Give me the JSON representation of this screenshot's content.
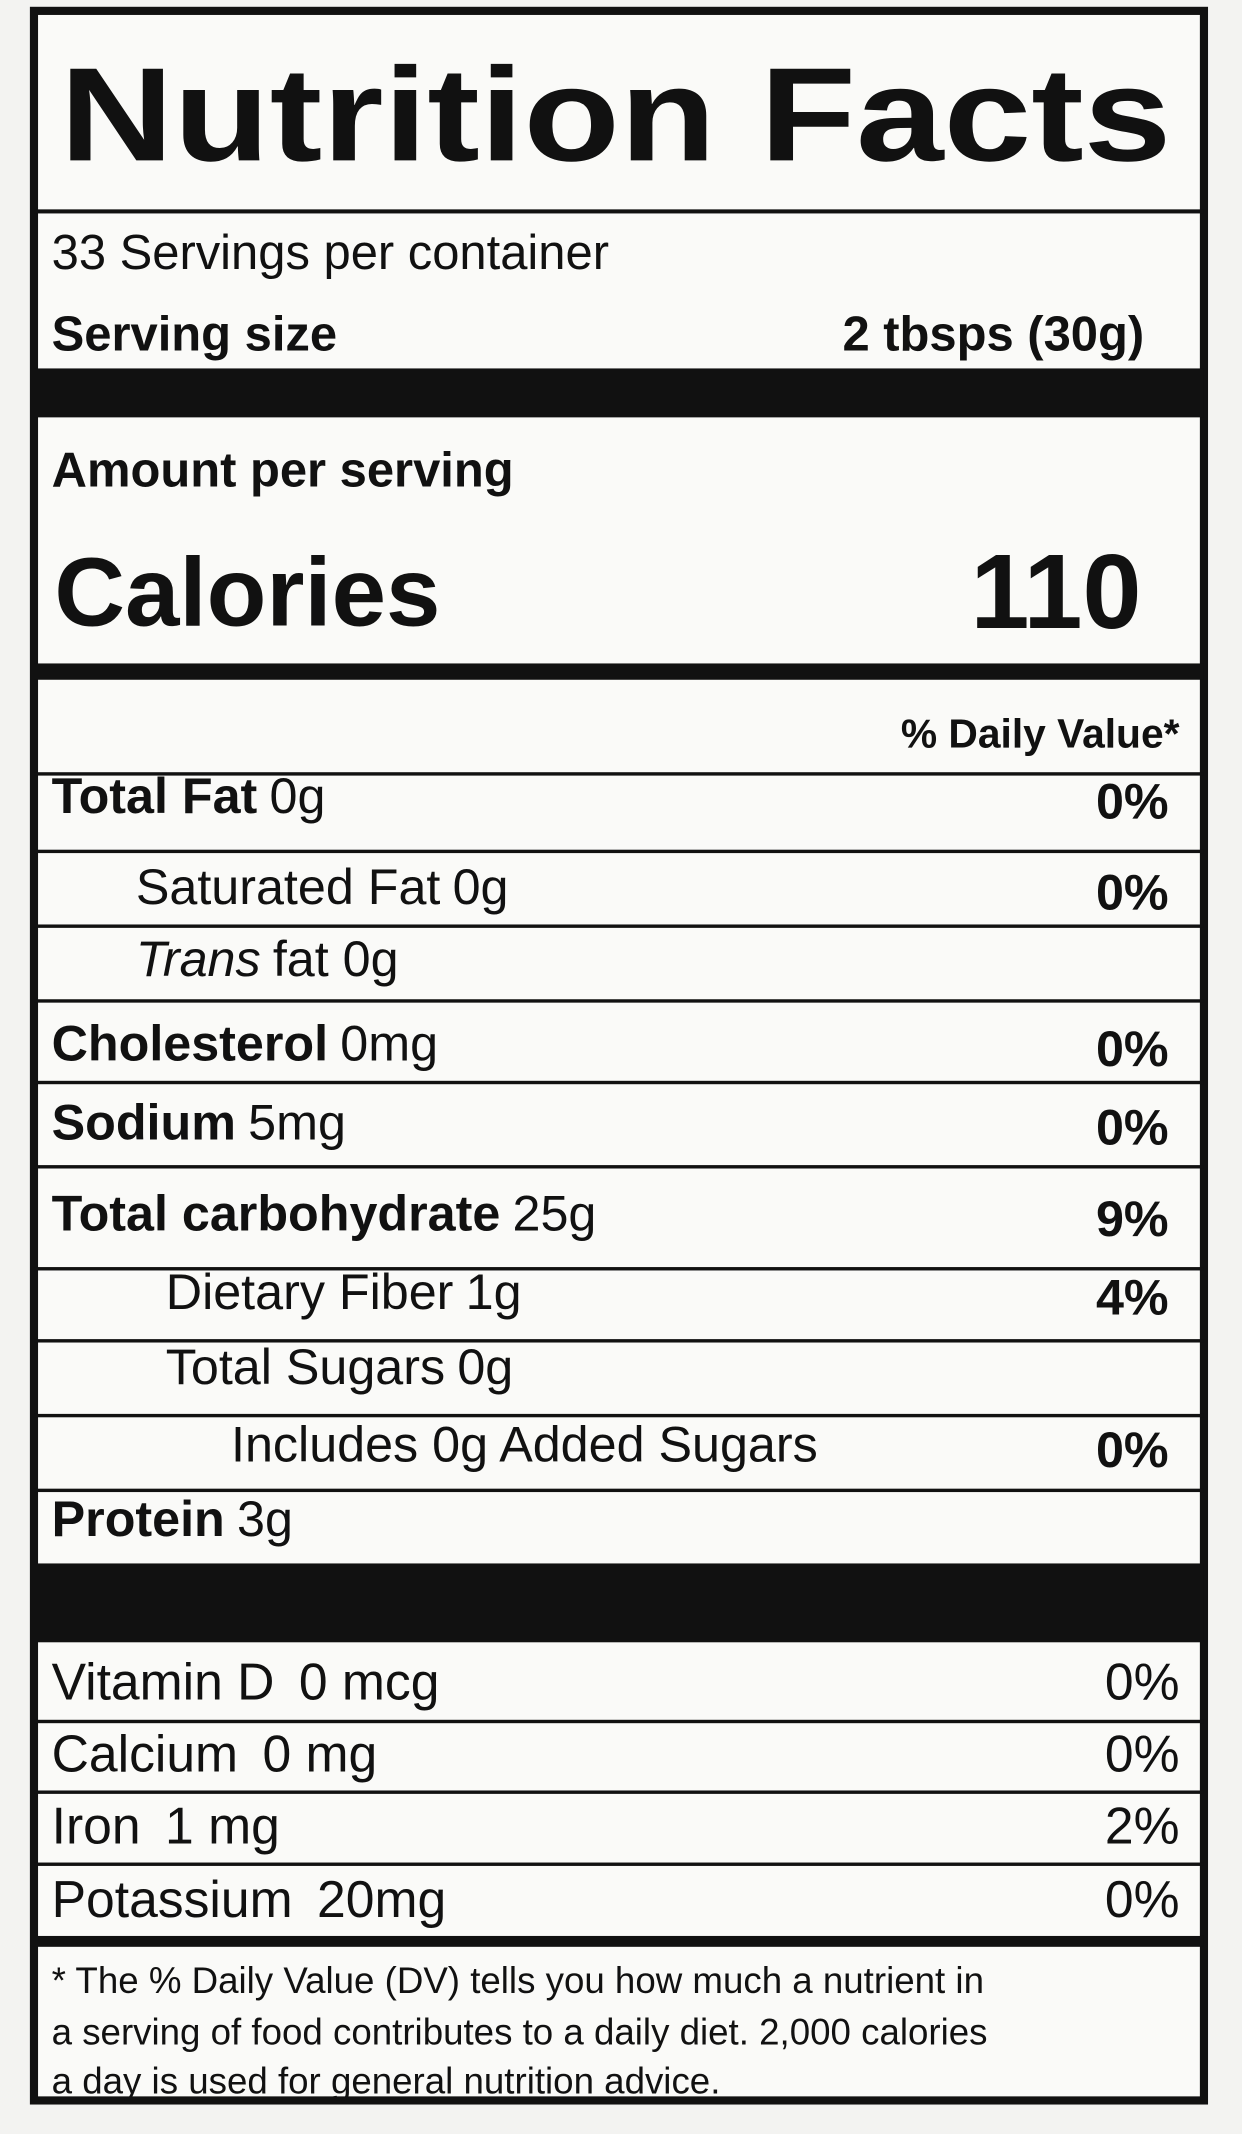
{
  "title": "Nutrition Facts",
  "servings": "33 Servings per container",
  "serving_size": {
    "label": "Serving size",
    "value": "2 tbsps (30g)"
  },
  "amount_per_serving": "Amount per serving",
  "calories": {
    "label": "Calories",
    "value": "110"
  },
  "daily_value_header": "% Daily Value*",
  "nutrients": [
    {
      "name": "Total Fat",
      "amount": "0g",
      "dv": "0%"
    },
    {
      "name": "Saturated Fat",
      "amount": "0g",
      "dv": "0%"
    },
    {
      "name": "Trans",
      "amount": "fat 0g"
    },
    {
      "name": "Cholesterol",
      "amount": "0mg",
      "dv": "0%"
    },
    {
      "name": "Sodium",
      "amount": "5mg",
      "dv": "0%"
    },
    {
      "name": "Total carbohydrate",
      "amount": "25g",
      "dv": "9%"
    },
    {
      "name": "Dietary Fiber",
      "amount": "1g",
      "dv": "4%"
    },
    {
      "name": "Total Sugars",
      "amount": "0g"
    },
    {
      "name": "Includes 0g Added Sugars",
      "dv": "0%"
    },
    {
      "name": "Protein",
      "amount": "3g"
    }
  ],
  "vitamins": [
    {
      "name": "Vitamin D",
      "amount": "0 mcg",
      "dv": "0%"
    },
    {
      "name": "Calcium",
      "amount": "0 mg",
      "dv": "0%"
    },
    {
      "name": "Iron",
      "amount": "1 mg",
      "dv": "2%"
    },
    {
      "name": "Potassium",
      "amount": "20mg",
      "dv": "0%"
    }
  ],
  "footnote": [
    "* The % Daily Value (DV) tells you how much a nutrient in",
    "a serving of food contributes to a daily diet. 2,000 calories",
    "a day is used for general nutrition advice."
  ]
}
